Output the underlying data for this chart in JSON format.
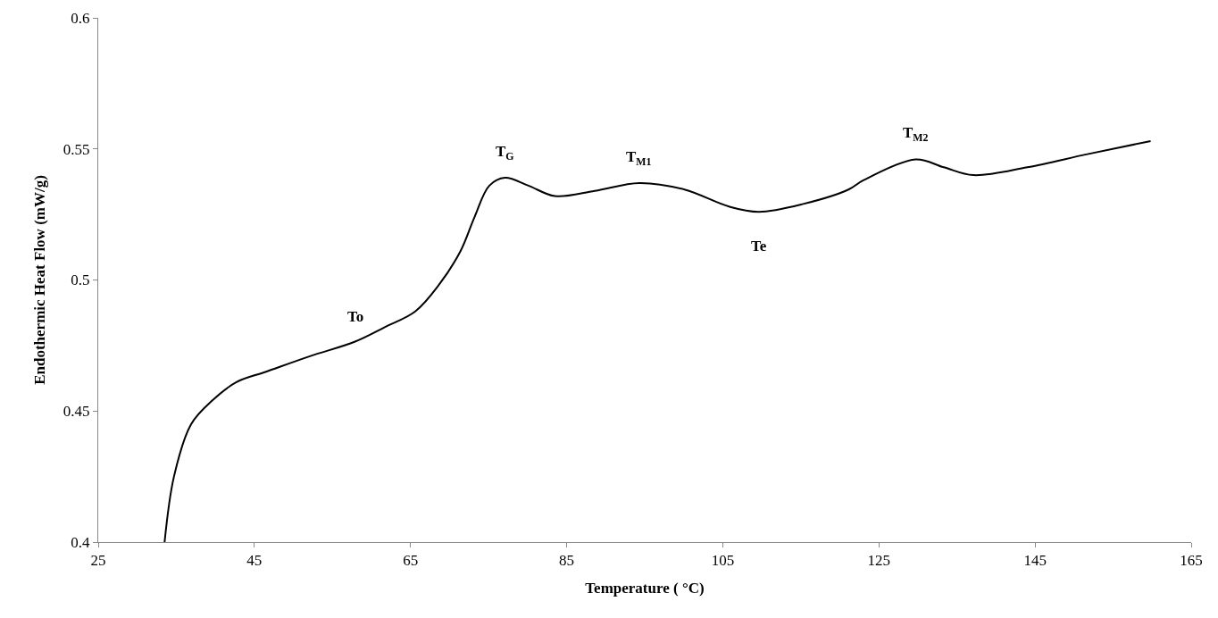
{
  "chart_data": {
    "type": "line",
    "xlabel": "Temperature ( °C)",
    "ylabel": "Endothermic Heat Flow (mW/g)",
    "x": [
      33.5,
      34.7,
      36.9,
      39.6,
      42.7,
      46.5,
      52.2,
      57.9,
      61.7,
      65.6,
      68.6,
      71.4,
      73.2,
      75.1,
      77.1,
      80.1,
      83.5,
      88.6,
      94.3,
      100.1,
      105.8,
      109.6,
      115.3,
      121.1,
      123.0,
      129.7,
      133.3,
      137.1,
      144.0,
      151.7,
      159.8
    ],
    "series": [
      {
        "color": "#000000",
        "values": [
          0.4,
          0.425,
          0.445,
          0.454,
          0.461,
          0.465,
          0.471,
          0.4765,
          0.482,
          0.488,
          0.498,
          0.511,
          0.524,
          0.536,
          0.539,
          0.536,
          0.532,
          0.534,
          0.537,
          0.5345,
          0.528,
          0.526,
          0.529,
          0.5345,
          0.538,
          0.546,
          0.543,
          0.54,
          0.543,
          0.548,
          0.553
        ]
      }
    ],
    "xlim": [
      25,
      165
    ],
    "xticks": [
      25,
      45,
      65,
      85,
      105,
      125,
      145,
      165
    ],
    "ylim": [
      0.4,
      0.6
    ],
    "yticks": [
      0.4,
      0.45,
      0.5,
      0.55,
      0.6
    ],
    "marker": "none",
    "line_style": "solid",
    "annotations": [
      {
        "text": "To",
        "x": 57.9,
        "y": 0.4765
      },
      {
        "text": "T$_{G}$",
        "x": 77.1,
        "y": 0.539
      },
      {
        "text": "T$_{M1}$",
        "x": 94.3,
        "y": 0.537
      },
      {
        "text": "Te",
        "x": 109.6,
        "y": 0.526
      },
      {
        "text": "T$_{M2}$",
        "x": 129.7,
        "y": 0.546
      }
    ]
  }
}
